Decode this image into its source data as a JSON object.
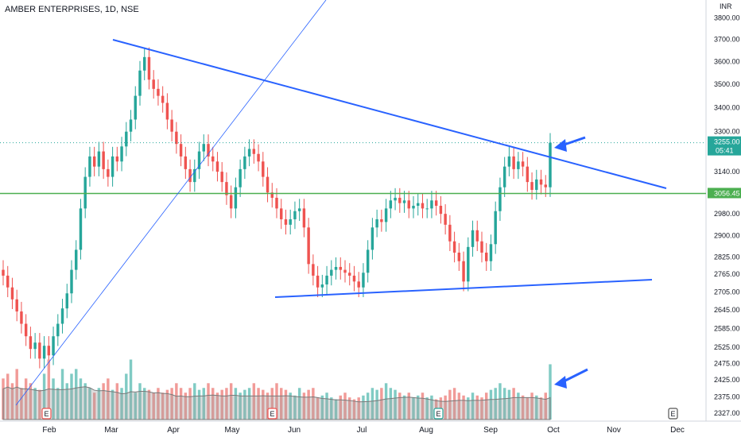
{
  "header": {
    "title": "AMBER ENTERPRISES, 1D, NSE",
    "currency": "INR"
  },
  "colors": {
    "up": "#26a69a",
    "down": "#ef5350",
    "up_volume": "#80cbc4",
    "down_volume": "#f19b98",
    "trendline": "#2962ff",
    "support": "#4caf50",
    "ma_area": "#9e9e9e",
    "price_tag": "#26a69a",
    "level_tag": "#4caf50"
  },
  "price_tag": {
    "value": "3255.00",
    "countdown": "05:41"
  },
  "level_tag": {
    "value": "3056.45"
  },
  "event_markers": [
    {
      "label": "E",
      "month": "Feb"
    },
    {
      "label": "E",
      "month": "May"
    },
    {
      "label": "E",
      "month": "Aug"
    },
    {
      "label": "E",
      "month": "Dec"
    }
  ],
  "arrow_icons": [
    "arrow-left-icon",
    "arrow-left-icon"
  ],
  "chart_data": {
    "type": "candlestick",
    "title": "AMBER ENTERPRISES, 1D, NSE",
    "x_ticks": [
      "Feb",
      "Mar",
      "Apr",
      "May",
      "Jun",
      "Jul",
      "Aug",
      "Sep",
      "Oct",
      "Nov",
      "Dec"
    ],
    "y_ticks": [
      "3800.00",
      "3700.00",
      "3600.00",
      "3500.00",
      "3400.00",
      "3300.00",
      "3140.00",
      "2980.00",
      "2900.00",
      "2825.00",
      "2765.00",
      "2705.00",
      "2645.00",
      "2585.00",
      "2525.00",
      "2475.00",
      "2425.00",
      "2375.00",
      "2327.00"
    ],
    "y_scale": "log",
    "ylim": [
      2327,
      3840
    ],
    "closes": [
      2760,
      2720,
      2680,
      2640,
      2600,
      2560,
      2520,
      2540,
      2490,
      2530,
      2500,
      2560,
      2600,
      2650,
      2700,
      2780,
      2850,
      3000,
      3120,
      3200,
      3160,
      3220,
      3150,
      3120,
      3200,
      3180,
      3240,
      3300,
      3350,
      3450,
      3560,
      3620,
      3520,
      3480,
      3450,
      3420,
      3350,
      3300,
      3250,
      3200,
      3150,
      3100,
      3150,
      3220,
      3250,
      3200,
      3180,
      3140,
      3100,
      3050,
      3000,
      3080,
      3150,
      3200,
      3230,
      3210,
      3180,
      3120,
      3060,
      3040,
      3000,
      2960,
      2940,
      2960,
      2990,
      3000,
      2930,
      2800,
      2760,
      2720,
      2730,
      2760,
      2780,
      2790,
      2780,
      2770,
      2760,
      2740,
      2720,
      2770,
      2850,
      2930,
      2960,
      2950,
      3000,
      3030,
      3040,
      3020,
      3030,
      3000,
      3010,
      3020,
      3000,
      3000,
      3030,
      3010,
      2980,
      2940,
      2880,
      2840,
      2810,
      2740,
      2860,
      2920,
      2880,
      2840,
      2810,
      2870,
      2990,
      3080,
      3160,
      3200,
      3150,
      3180,
      3160,
      3100,
      3070,
      3110,
      3090,
      3080,
      3255
    ],
    "volume": {
      "type": "bar",
      "ylabel": "",
      "values": [
        0.4,
        0.45,
        0.35,
        0.5,
        0.3,
        0.4,
        0.35,
        0.3,
        0.28,
        0.45,
        0.6,
        0.4,
        0.3,
        0.5,
        0.35,
        0.45,
        0.5,
        0.4,
        0.35,
        0.3,
        0.25,
        0.3,
        0.35,
        0.4,
        0.28,
        0.35,
        0.3,
        0.45,
        0.6,
        0.25,
        0.35,
        0.3,
        0.28,
        0.25,
        0.3,
        0.25,
        0.28,
        0.3,
        0.35,
        0.3,
        0.25,
        0.3,
        0.35,
        0.28,
        0.3,
        0.35,
        0.3,
        0.25,
        0.28,
        0.3,
        0.35,
        0.3,
        0.25,
        0.28,
        0.3,
        0.35,
        0.3,
        0.28,
        0.25,
        0.3,
        0.35,
        0.3,
        0.28,
        0.25,
        0.22,
        0.3,
        0.25,
        0.28,
        0.3,
        0.2,
        0.22,
        0.25,
        0.2,
        0.18,
        0.22,
        0.25,
        0.2,
        0.18,
        0.2,
        0.22,
        0.25,
        0.3,
        0.28,
        0.3,
        0.35,
        0.3,
        0.28,
        0.25,
        0.22,
        0.25,
        0.2,
        0.22,
        0.25,
        0.2,
        0.22,
        0.18,
        0.2,
        0.22,
        0.28,
        0.3,
        0.25,
        0.22,
        0.2,
        0.25,
        0.22,
        0.2,
        0.25,
        0.28,
        0.3,
        0.35,
        0.3,
        0.28,
        0.3,
        0.25,
        0.22,
        0.2,
        0.25,
        0.22,
        0.2,
        0.25,
        0.55
      ]
    }
  }
}
